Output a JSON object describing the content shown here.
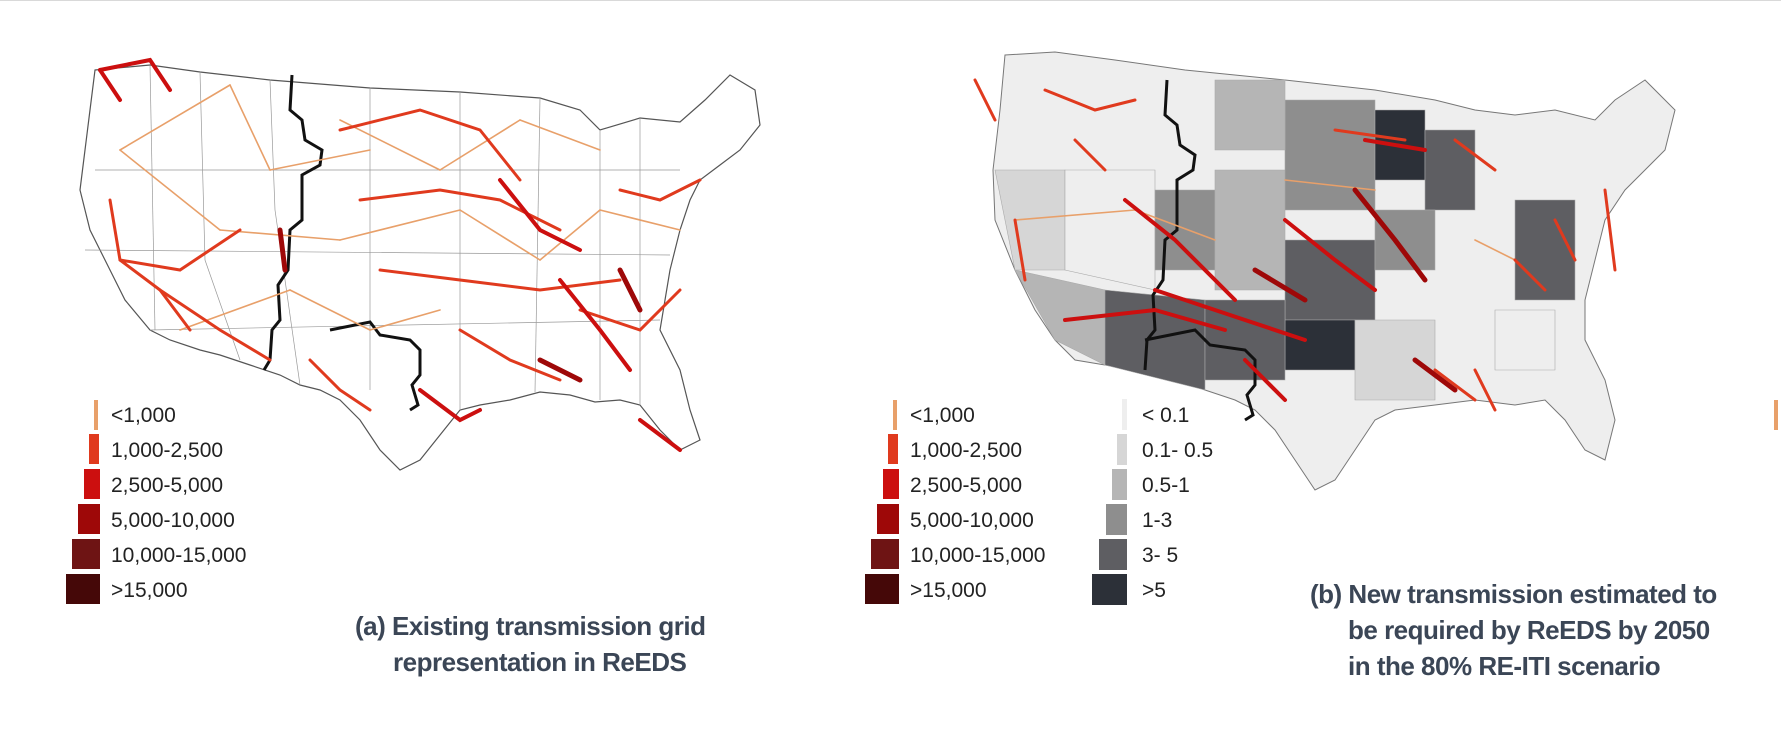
{
  "panel_a": {
    "caption_lines": [
      "(a) Existing transmission grid",
      "representation in ReEDS"
    ],
    "legend": [
      {
        "label": "<1,000",
        "color": "#e8a06a"
      },
      {
        "label": "1,000-2,500",
        "color": "#e03a1e"
      },
      {
        "label": "2,500-5,000",
        "color": "#cc0f0f"
      },
      {
        "label": "5,000-10,000",
        "color": "#9e0808"
      },
      {
        "label": "10,000-15,000",
        "color": "#6e1414"
      },
      {
        "label": ">15,000",
        "color": "#450808"
      }
    ]
  },
  "panel_b": {
    "caption_lines": [
      "(b) New transmission estimated to",
      "be required by ReEDS by 2050",
      "in the 80% RE-ITI scenario"
    ],
    "legend_lines": [
      {
        "label": "<1,000",
        "color": "#e8a06a"
      },
      {
        "label": "1,000-2,500",
        "color": "#e03a1e"
      },
      {
        "label": "2,500-5,000",
        "color": "#cc0f0f"
      },
      {
        "label": "5,000-10,000",
        "color": "#9e0808"
      },
      {
        "label": "10,000-15,000",
        "color": "#6e1414"
      },
      {
        "label": ">15,000",
        "color": "#450808"
      }
    ],
    "legend_fill": [
      {
        "label": "< 0.1",
        "color": "#eeeeee"
      },
      {
        "label": "0.1- 0.5",
        "color": "#d6d6d6"
      },
      {
        "label": "0.5-1",
        "color": "#b5b5b5"
      },
      {
        "label": "1-3",
        "color": "#8e8e8e"
      },
      {
        "label": "3- 5",
        "color": "#5e5e62"
      },
      {
        "label": ">5",
        "color": "#2c3038"
      }
    ]
  }
}
